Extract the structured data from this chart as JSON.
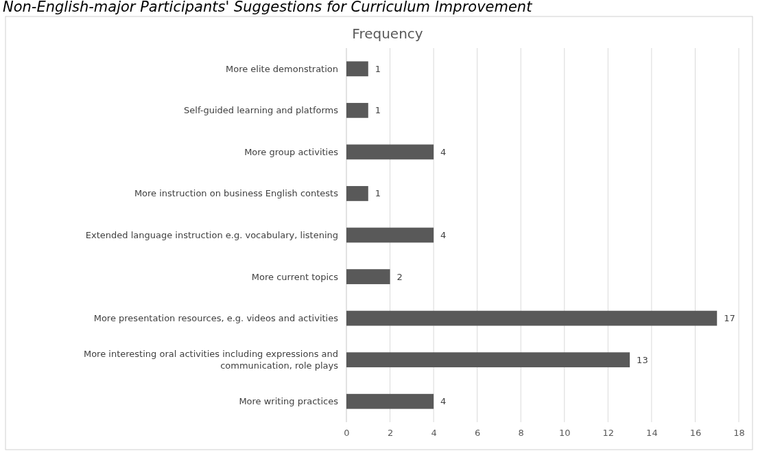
{
  "chart_data": {
    "type": "bar",
    "orientation": "horizontal",
    "title": "Frequency",
    "annotations": [
      "Non-English-major Participants' Suggestions for Curriculum Improvement"
    ],
    "categories": [
      "More elite demonstration",
      "Self-guided learning and platforms",
      "More group activities",
      "More instruction on business English contests",
      "Extended language instruction e.g. vocabulary, listening",
      "More current topics",
      "More presentation resources, e.g. videos and activities",
      "More interesting oral activities including expressions and communication, role plays",
      "More writing practices"
    ],
    "values": [
      1,
      1,
      4,
      1,
      4,
      2,
      17,
      13,
      4
    ],
    "color": "#595959",
    "xlim": [
      0,
      18
    ],
    "xticks": [
      0,
      2,
      4,
      6,
      8,
      10,
      12,
      14,
      16,
      18
    ],
    "grid": "x",
    "data_labels": true
  }
}
